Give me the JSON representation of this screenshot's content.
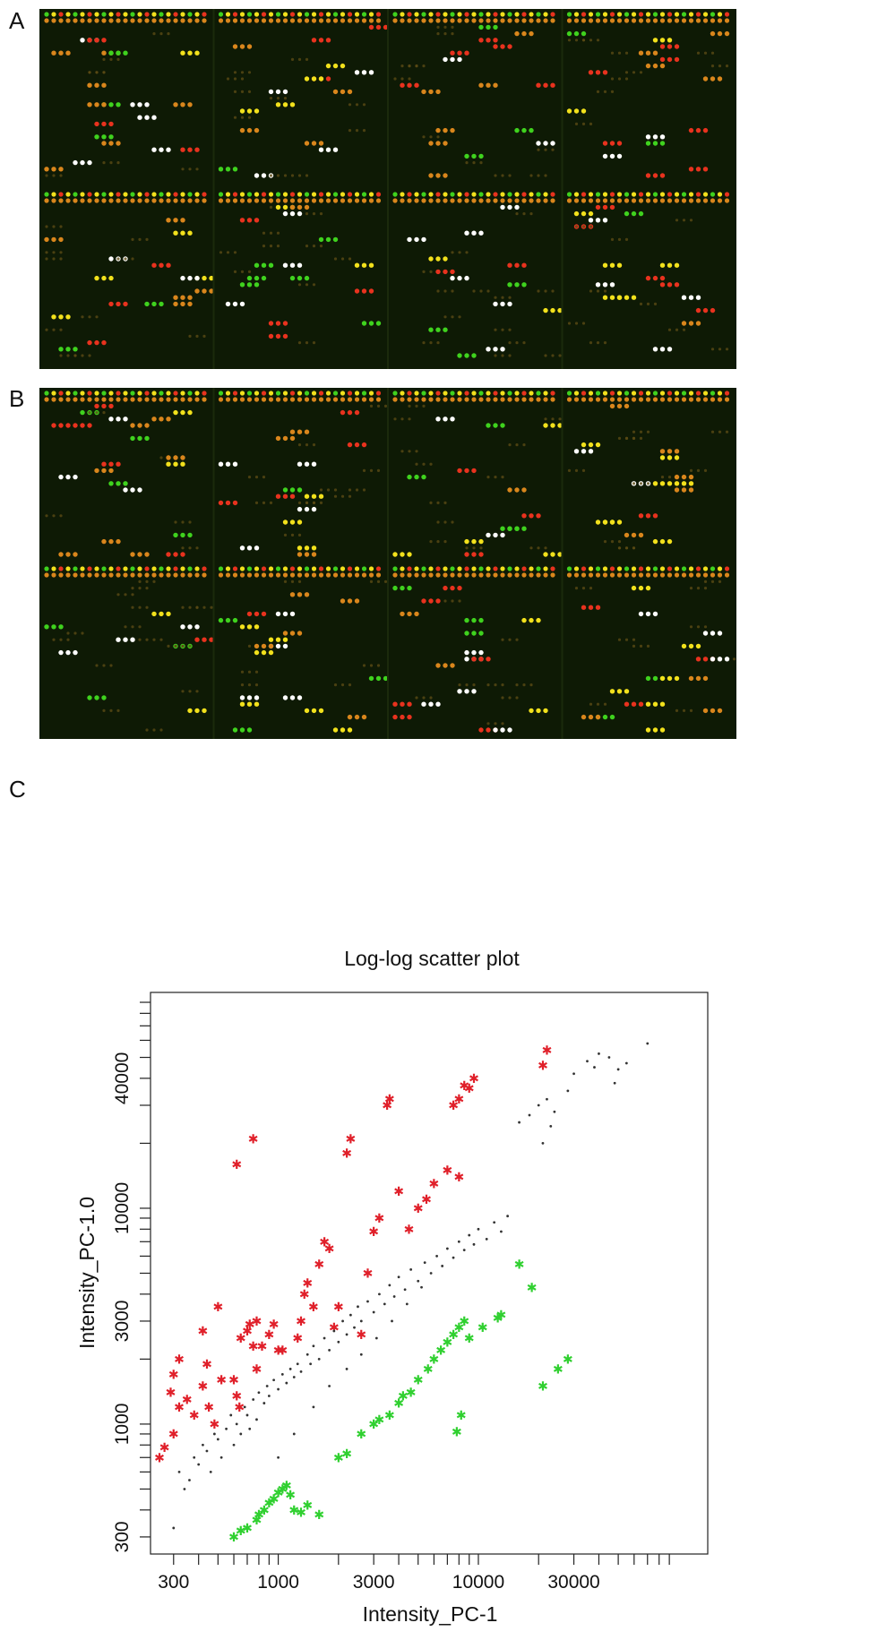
{
  "panels": {
    "a_label": "A",
    "b_label": "B",
    "c_label": "C"
  },
  "colors": {
    "array_background": "#0e1a05",
    "spot_red": "#e8321e",
    "spot_green": "#3fd21e",
    "spot_yellow": "#f2e11c",
    "spot_white": "#ffffff",
    "spot_orange": "#d9861c",
    "spot_dim": "#5a4a14",
    "upregulated": "#e0202a",
    "downregulated": "#30d030",
    "unchanged": "#333333"
  },
  "chart_data": {
    "type": "scatter",
    "title": "Log-log scatter plot",
    "xlabel": "Intensity_PC-1",
    "ylabel": "Intensity_PC-1.0",
    "x_scale": "log",
    "y_scale": "log",
    "xlim": [
      230,
      140000
    ],
    "ylim": [
      250,
      100000
    ],
    "x_tick_labels": [
      300,
      1000,
      3000,
      10000,
      30000
    ],
    "y_tick_labels": [
      300,
      1000,
      3000,
      10000,
      40000
    ],
    "grid": false,
    "legend": "none",
    "series": [
      {
        "marker": "star",
        "color": "#e0202a",
        "points": [
          [
            255,
            700
          ],
          [
            270,
            780
          ],
          [
            300,
            900
          ],
          [
            320,
            1200
          ],
          [
            290,
            1400
          ],
          [
            300,
            1700
          ],
          [
            320,
            2000
          ],
          [
            350,
            1300
          ],
          [
            380,
            1100
          ],
          [
            420,
            1500
          ],
          [
            450,
            1200
          ],
          [
            480,
            1000
          ],
          [
            420,
            2700
          ],
          [
            440,
            1900
          ],
          [
            500,
            3500
          ],
          [
            520,
            1600
          ],
          [
            600,
            1600
          ],
          [
            620,
            1350
          ],
          [
            640,
            1200
          ],
          [
            650,
            2500
          ],
          [
            700,
            2700
          ],
          [
            720,
            2900
          ],
          [
            750,
            2300
          ],
          [
            780,
            1800
          ],
          [
            780,
            3000
          ],
          [
            830,
            2300
          ],
          [
            900,
            2600
          ],
          [
            950,
            2900
          ],
          [
            1000,
            2200
          ],
          [
            1050,
            2200
          ],
          [
            1250,
            2500
          ],
          [
            1300,
            3000
          ],
          [
            1350,
            4000
          ],
          [
            1400,
            4500
          ],
          [
            1500,
            3500
          ],
          [
            1600,
            5500
          ],
          [
            1700,
            7000
          ],
          [
            1800,
            6500
          ],
          [
            1900,
            2800
          ],
          [
            2000,
            3500
          ],
          [
            2200,
            18000
          ],
          [
            2300,
            21000
          ],
          [
            2600,
            2600
          ],
          [
            2800,
            5000
          ],
          [
            3000,
            7800
          ],
          [
            3200,
            9000
          ],
          [
            3500,
            30000
          ],
          [
            3600,
            32000
          ],
          [
            4000,
            12000
          ],
          [
            4500,
            8000
          ],
          [
            5000,
            10000
          ],
          [
            5500,
            11000
          ],
          [
            6000,
            13000
          ],
          [
            7000,
            15000
          ],
          [
            7500,
            30000
          ],
          [
            8000,
            32000
          ],
          [
            8500,
            37000
          ],
          [
            9000,
            36000
          ],
          [
            9500,
            40000
          ],
          [
            8000,
            14000
          ],
          [
            620,
            16000
          ],
          [
            750,
            21000
          ],
          [
            21000,
            46000
          ],
          [
            22000,
            54000
          ]
        ]
      },
      {
        "marker": "star",
        "color": "#30d030",
        "points": [
          [
            600,
            300
          ],
          [
            650,
            320
          ],
          [
            700,
            330
          ],
          [
            780,
            360
          ],
          [
            800,
            380
          ],
          [
            850,
            400
          ],
          [
            900,
            430
          ],
          [
            950,
            450
          ],
          [
            1000,
            480
          ],
          [
            1050,
            500
          ],
          [
            1100,
            520
          ],
          [
            1150,
            470
          ],
          [
            1200,
            400
          ],
          [
            1300,
            390
          ],
          [
            1400,
            420
          ],
          [
            1600,
            380
          ],
          [
            2000,
            700
          ],
          [
            2200,
            730
          ],
          [
            2600,
            900
          ],
          [
            3000,
            1000
          ],
          [
            3200,
            1050
          ],
          [
            3600,
            1100
          ],
          [
            4000,
            1250
          ],
          [
            4200,
            1350
          ],
          [
            4600,
            1400
          ],
          [
            5000,
            1600
          ],
          [
            5600,
            1800
          ],
          [
            6000,
            2000
          ],
          [
            6500,
            2200
          ],
          [
            7000,
            2400
          ],
          [
            7500,
            2600
          ],
          [
            8000,
            2800
          ],
          [
            8500,
            3000
          ],
          [
            9000,
            2500
          ],
          [
            10500,
            2800
          ],
          [
            12500,
            3100
          ],
          [
            13000,
            3200
          ],
          [
            16000,
            5500
          ],
          [
            18500,
            4300
          ],
          [
            21000,
            1500
          ],
          [
            25000,
            1800
          ],
          [
            28000,
            2000
          ],
          [
            7800,
            920
          ],
          [
            8200,
            1100
          ]
        ]
      },
      {
        "marker": "dot",
        "color": "#333333",
        "points": [
          [
            300,
            330
          ],
          [
            320,
            600
          ],
          [
            340,
            500
          ],
          [
            360,
            550
          ],
          [
            380,
            700
          ],
          [
            400,
            650
          ],
          [
            420,
            800
          ],
          [
            440,
            750
          ],
          [
            460,
            600
          ],
          [
            480,
            900
          ],
          [
            500,
            850
          ],
          [
            520,
            700
          ],
          [
            550,
            950
          ],
          [
            580,
            1100
          ],
          [
            600,
            800
          ],
          [
            620,
            1000
          ],
          [
            650,
            900
          ],
          [
            680,
            1200
          ],
          [
            700,
            1100
          ],
          [
            720,
            950
          ],
          [
            750,
            1300
          ],
          [
            780,
            1050
          ],
          [
            800,
            1400
          ],
          [
            850,
            1250
          ],
          [
            880,
            1500
          ],
          [
            900,
            1350
          ],
          [
            950,
            1600
          ],
          [
            1000,
            1450
          ],
          [
            1050,
            1700
          ],
          [
            1100,
            1550
          ],
          [
            1150,
            1800
          ],
          [
            1200,
            1650
          ],
          [
            1250,
            1900
          ],
          [
            1300,
            1750
          ],
          [
            1400,
            2100
          ],
          [
            1450,
            1900
          ],
          [
            1500,
            2300
          ],
          [
            1600,
            2000
          ],
          [
            1700,
            2500
          ],
          [
            1800,
            2200
          ],
          [
            1900,
            2700
          ],
          [
            2000,
            2400
          ],
          [
            2100,
            3000
          ],
          [
            2200,
            2600
          ],
          [
            2300,
            3200
          ],
          [
            2400,
            2800
          ],
          [
            2500,
            3500
          ],
          [
            2600,
            3000
          ],
          [
            2800,
            3700
          ],
          [
            3000,
            3300
          ],
          [
            3200,
            4000
          ],
          [
            3400,
            3600
          ],
          [
            3600,
            4400
          ],
          [
            3800,
            3900
          ],
          [
            4000,
            4800
          ],
          [
            4300,
            4200
          ],
          [
            4600,
            5200
          ],
          [
            5000,
            4600
          ],
          [
            5400,
            5600
          ],
          [
            5800,
            5000
          ],
          [
            6200,
            6000
          ],
          [
            6600,
            5400
          ],
          [
            7000,
            6500
          ],
          [
            7500,
            5900
          ],
          [
            8000,
            7000
          ],
          [
            8500,
            6400
          ],
          [
            9000,
            7500
          ],
          [
            9500,
            6800
          ],
          [
            10000,
            8000
          ],
          [
            11000,
            7200
          ],
          [
            12000,
            8600
          ],
          [
            13000,
            7800
          ],
          [
            14000,
            9200
          ],
          [
            16000,
            25000
          ],
          [
            18000,
            27000
          ],
          [
            20000,
            30000
          ],
          [
            22000,
            32000
          ],
          [
            24000,
            28000
          ],
          [
            30000,
            42000
          ],
          [
            35000,
            48000
          ],
          [
            40000,
            52000
          ],
          [
            45000,
            50000
          ],
          [
            50000,
            44000
          ],
          [
            55000,
            47000
          ],
          [
            70000,
            58000
          ],
          [
            28000,
            35000
          ],
          [
            38000,
            45000
          ],
          [
            48000,
            38000
          ],
          [
            21000,
            20000
          ],
          [
            23000,
            24000
          ],
          [
            1000,
            700
          ],
          [
            1200,
            900
          ],
          [
            1500,
            1200
          ],
          [
            1800,
            1500
          ],
          [
            2200,
            1800
          ],
          [
            2600,
            2100
          ],
          [
            3100,
            2500
          ],
          [
            3700,
            3000
          ],
          [
            4400,
            3600
          ],
          [
            5200,
            4300
          ]
        ]
      }
    ]
  }
}
